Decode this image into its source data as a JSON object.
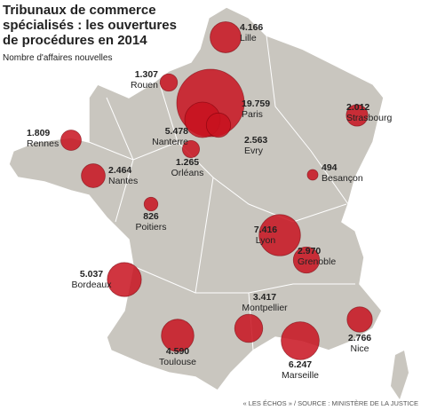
{
  "title": [
    "Tribunaux de commerce",
    "spécialisés : les ouvertures",
    "de procédures en 2014"
  ],
  "subtitle": "Nombre d'affaires nouvelles",
  "cities": [
    {
      "name": "Lille",
      "value": 4166,
      "value_label": "4.166"
    },
    {
      "name": "Rouen",
      "value": 1307,
      "value_label": "1.307"
    },
    {
      "name": "Paris",
      "value": 19759,
      "value_label": "19.759"
    },
    {
      "name": "Nanterre",
      "value": 5478,
      "value_label": "5.478"
    },
    {
      "name": "Evry",
      "value": 2563,
      "value_label": "2.563"
    },
    {
      "name": "Orléans",
      "value": 1265,
      "value_label": "1.265"
    },
    {
      "name": "Strasbourg",
      "value": 2012,
      "value_label": "2.012"
    },
    {
      "name": "Rennes",
      "value": 1809,
      "value_label": "1.809"
    },
    {
      "name": "Nantes",
      "value": 2464,
      "value_label": "2.464"
    },
    {
      "name": "Besançon",
      "value": 494
    },
    {
      "name": "Poitiers",
      "value": 826
    },
    {
      "name": "Lyon",
      "value": 7416,
      "value_label": "7.416"
    },
    {
      "name": "Grenoble",
      "value": 2970,
      "value_label": "2.970"
    },
    {
      "name": "Bordeaux",
      "value": 5037,
      "value_label": "5.037"
    },
    {
      "name": "Montpellier",
      "value": 3417,
      "value_label": "3.417"
    },
    {
      "name": "Toulouse",
      "value": 4590,
      "value_label": "4.590"
    },
    {
      "name": "Marseille",
      "value": 6247,
      "value_label": "6.247"
    },
    {
      "name": "Nice",
      "value": 2766,
      "value_label": "2.766"
    }
  ],
  "source": "« LES ÉCHOS » / SOURCE : MINISTÈRE DE LA JUSTICE"
}
